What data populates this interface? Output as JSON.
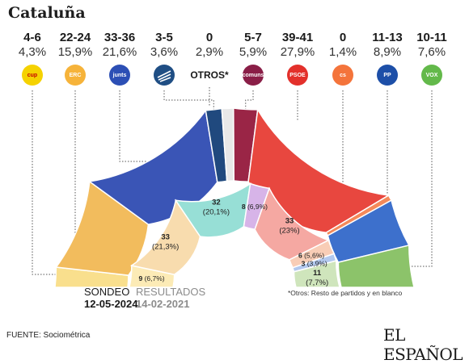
{
  "title": "Cataluña",
  "parties": [
    {
      "key": "cup",
      "seats": "4-6",
      "pct": "4,3%",
      "logo_text": "cup",
      "logo_bg": "#f5d200",
      "logo_fg": "#c40000",
      "icon": "cup-logo-icon"
    },
    {
      "key": "erc",
      "seats": "22-24",
      "pct": "15,9%",
      "logo_text": "ERC",
      "logo_bg": "#f6b33a",
      "logo_fg": "#ffffff",
      "icon": "erc-logo-icon"
    },
    {
      "key": "junts",
      "seats": "33-36",
      "pct": "21,6%",
      "logo_text": "junts",
      "logo_bg": "#2c4fb5",
      "logo_fg": "#ffffff",
      "icon": "junts-logo-icon"
    },
    {
      "key": "alianca",
      "seats": "3-5",
      "pct": "3,6%",
      "logo_text": "",
      "logo_bg": "#1f4e84",
      "logo_fg": "#ffffff",
      "icon": "alianca-logo-icon"
    },
    {
      "key": "otros",
      "seats": "0",
      "pct": "2,9%",
      "logo_text": "",
      "otros_label": "OTROS*",
      "logo_bg": "",
      "logo_fg": "",
      "icon": ""
    },
    {
      "key": "comuns",
      "seats": "5-7",
      "pct": "5,9%",
      "logo_text": "comuns",
      "logo_bg": "#8a1e47",
      "logo_fg": "#ffffff",
      "icon": "comuns-logo-icon"
    },
    {
      "key": "psoe",
      "seats": "39-41",
      "pct": "27,9%",
      "logo_text": "PSOE",
      "logo_bg": "#e3302b",
      "logo_fg": "#ffffff",
      "icon": "psoe-logo-icon"
    },
    {
      "key": "cs",
      "seats": "0",
      "pct": "1,4%",
      "logo_text": "cs",
      "logo_bg": "#f4743b",
      "logo_fg": "#ffffff",
      "icon": "cs-logo-icon"
    },
    {
      "key": "pp",
      "seats": "11-13",
      "pct": "8,9%",
      "logo_text": "PP",
      "logo_bg": "#1d4fa8",
      "logo_fg": "#ffffff",
      "icon": "pp-logo-icon"
    },
    {
      "key": "vox",
      "seats": "10-11",
      "pct": "7,6%",
      "logo_text": "VOX",
      "logo_bg": "#63b94a",
      "logo_fg": "#ffffff",
      "icon": "vox-logo-icon"
    }
  ],
  "chart_data": {
    "type": "pie",
    "subtype": "hemicycle",
    "outer_ring": {
      "label": "SONDEO",
      "date": "12-05-2024",
      "segments": [
        {
          "party": "cup",
          "value": 5,
          "color": "#f9df8d"
        },
        {
          "party": "erc",
          "value": 23,
          "color": "#f2bc5d"
        },
        {
          "party": "junts",
          "value": 34.5,
          "color": "#3a55b6"
        },
        {
          "party": "alianca",
          "value": 4,
          "color": "#20497e"
        },
        {
          "party": "otros",
          "value": 2.9,
          "color": "#e8e8e8"
        },
        {
          "party": "comuns",
          "value": 6,
          "color": "#9a2546"
        },
        {
          "party": "psoe",
          "value": 40,
          "color": "#e8473f"
        },
        {
          "party": "cs",
          "value": 1.4,
          "color": "#f4895a"
        },
        {
          "party": "pp",
          "value": 12,
          "color": "#3d70cc"
        },
        {
          "party": "vox",
          "value": 10.5,
          "color": "#8cc36a"
        }
      ]
    },
    "inner_ring": {
      "label": "RESULTADOS",
      "date": "14-02-2021",
      "segments": [
        {
          "party": "cup",
          "seats": "9",
          "pct": "(6,7%)",
          "value": 9,
          "color": "#fcebb6"
        },
        {
          "party": "erc",
          "seats": "33",
          "pct": "(21,3%)",
          "value": 33,
          "color": "#f8dcae"
        },
        {
          "party": "junts",
          "seats": "32",
          "pct": "(20,1%)",
          "value": 32,
          "color": "#97dfd6"
        },
        {
          "party": "comuns",
          "seats": "8",
          "pct": "(6,9%)",
          "value": 8,
          "color": "#d7b4e8"
        },
        {
          "party": "psoe",
          "seats": "33",
          "pct": "(23%)",
          "value": 33,
          "color": "#f5a8a2"
        },
        {
          "party": "cs",
          "seats": "6",
          "pct": "(5,6%)",
          "value": 6,
          "color": "#f8cdb6"
        },
        {
          "party": "pp",
          "seats": "3",
          "pct": "(3,9%)",
          "value": 3,
          "color": "#b2c8ee"
        },
        {
          "party": "vox",
          "seats": "11",
          "pct": "(7,7%)",
          "value": 11,
          "color": "#cfe5bc"
        }
      ]
    }
  },
  "legend": {
    "sondeo_label": "SONDEO",
    "sondeo_date": "12-05-2024",
    "resultados_label": "RESULTADOS",
    "resultados_date": "14-02-2021"
  },
  "note": "*Otros: Resto de partidos y en blanco",
  "source": "FUENTE: Sociométrica",
  "brand": "EL ESPAÑOL"
}
